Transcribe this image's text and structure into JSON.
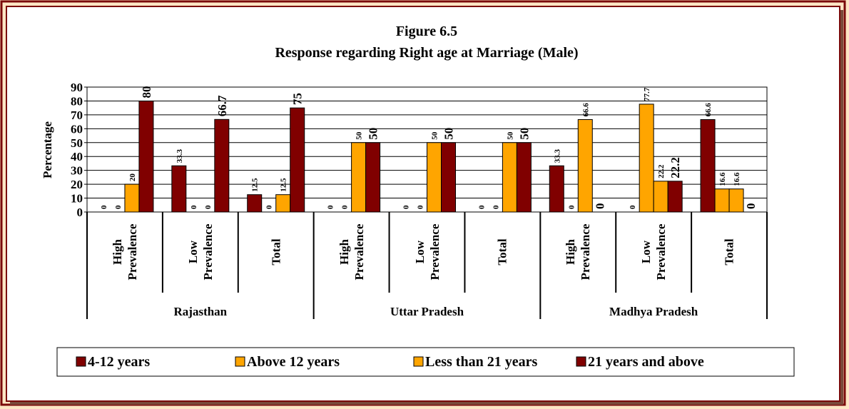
{
  "chart_data": {
    "type": "bar",
    "title": "Figure 6.5",
    "subtitle": "Response regarding Right age at Marriage (Male)",
    "y_label": "Percentage",
    "categories": [
      "High Prevalence",
      "Low Prevalence",
      "Total",
      "High Prevalence",
      "Low Prevalence",
      "Total",
      "High Prevalence",
      "Low Prevalence",
      "Total"
    ],
    "groups": [
      "Rajasthan",
      "Uttar Pradesh",
      "Madhya Pradesh"
    ],
    "series": [
      {
        "name": "4-12 years",
        "color": "#800000",
        "values": [
          0,
          33.3,
          12.5,
          0,
          0,
          0,
          33.3,
          0,
          66.6
        ]
      },
      {
        "name": "Above 12 years",
        "color": "#ffa500",
        "values": [
          0,
          0,
          0,
          0,
          0,
          0,
          0,
          77.7,
          16.6
        ]
      },
      {
        "name": "Less than 21 years",
        "color": "#ffa500",
        "values": [
          20,
          0,
          12.5,
          50,
          50,
          50,
          66.6,
          22.2,
          16.6
        ]
      },
      {
        "name": "21 years and above",
        "color": "#800000",
        "values": [
          80,
          66.7,
          75,
          50,
          50,
          50,
          0,
          22.2,
          0
        ]
      }
    ],
    "ylim": [
      0,
      90
    ],
    "yticks": [
      0,
      10,
      20,
      30,
      40,
      50,
      60,
      70,
      80,
      90
    ],
    "grid": true,
    "legend": "bottom"
  }
}
